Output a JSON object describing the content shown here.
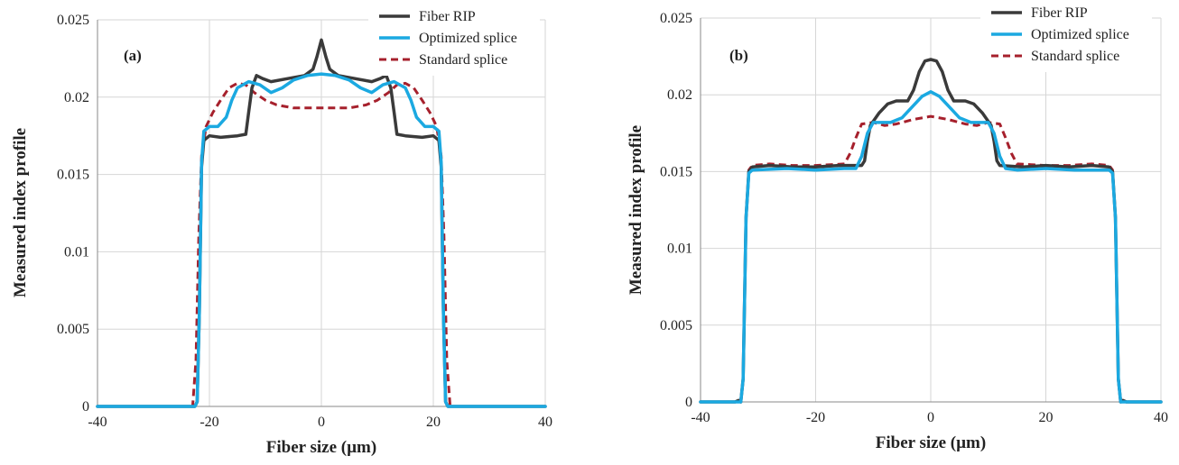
{
  "chart_data": [
    {
      "type": "line",
      "panel_label": "(a)",
      "xlabel": "Fiber size (µm)",
      "ylabel": "Measured index profile",
      "xlim": [
        -40,
        40
      ],
      "ylim": [
        0,
        0.025
      ],
      "xticks": [
        -40,
        -20,
        0,
        20,
        40
      ],
      "xtick_labels": [
        "-40",
        "-20",
        "0",
        "20",
        "40"
      ],
      "yticks": [
        0,
        0.005,
        0.01,
        0.015,
        0.02,
        0.025
      ],
      "ytick_labels": [
        "0",
        "0.005",
        "0.01",
        "0.015",
        "0.02",
        "0.025"
      ],
      "grid": true,
      "legend_position": "top-right",
      "series": [
        {
          "name": "Fiber RIP",
          "color": "#3a3a3a",
          "dash": "solid",
          "points": [
            [
              -40,
              0
            ],
            [
              -22.6,
              0
            ],
            [
              -22.2,
              0.0003
            ],
            [
              -21.8,
              0.006
            ],
            [
              -21.4,
              0.0155
            ],
            [
              -21,
              0.0172
            ],
            [
              -20,
              0.0175
            ],
            [
              -18,
              0.0174
            ],
            [
              -15,
              0.0175
            ],
            [
              -13.5,
              0.0176
            ],
            [
              -13,
              0.019
            ],
            [
              -12.4,
              0.0206
            ],
            [
              -11.6,
              0.0214
            ],
            [
              -10.5,
              0.0212
            ],
            [
              -9,
              0.021
            ],
            [
              -6,
              0.0212
            ],
            [
              -3,
              0.0214
            ],
            [
              -1.5,
              0.0218
            ],
            [
              -0.8,
              0.0226
            ],
            [
              0,
              0.0237
            ],
            [
              0.8,
              0.0226
            ],
            [
              1.5,
              0.0218
            ],
            [
              3,
              0.0214
            ],
            [
              6,
              0.0212
            ],
            [
              9,
              0.021
            ],
            [
              10.5,
              0.0212
            ],
            [
              11.6,
              0.0214
            ],
            [
              12.4,
              0.0206
            ],
            [
              13,
              0.019
            ],
            [
              13.5,
              0.0176
            ],
            [
              15,
              0.0175
            ],
            [
              18,
              0.0174
            ],
            [
              20,
              0.0175
            ],
            [
              21,
              0.0172
            ],
            [
              21.4,
              0.0155
            ],
            [
              21.8,
              0.006
            ],
            [
              22.2,
              0.0003
            ],
            [
              22.6,
              0
            ],
            [
              40,
              0
            ]
          ]
        },
        {
          "name": "Optimized splice",
          "color": "#1ba9e1",
          "dash": "solid",
          "points": [
            [
              -40,
              0
            ],
            [
              -22.6,
              0
            ],
            [
              -22.2,
              0.0003
            ],
            [
              -21.8,
              0.006
            ],
            [
              -21.4,
              0.0158
            ],
            [
              -21,
              0.0178
            ],
            [
              -20,
              0.0181
            ],
            [
              -18.5,
              0.0181
            ],
            [
              -17,
              0.0187
            ],
            [
              -16,
              0.0198
            ],
            [
              -15,
              0.0206
            ],
            [
              -13,
              0.021
            ],
            [
              -11,
              0.0208
            ],
            [
              -9,
              0.0203
            ],
            [
              -7,
              0.0206
            ],
            [
              -5,
              0.0211
            ],
            [
              -2.5,
              0.0214
            ],
            [
              0,
              0.0215
            ],
            [
              2.5,
              0.0214
            ],
            [
              5,
              0.0211
            ],
            [
              7,
              0.0206
            ],
            [
              9,
              0.0203
            ],
            [
              11,
              0.0208
            ],
            [
              13,
              0.021
            ],
            [
              15,
              0.0206
            ],
            [
              16,
              0.0198
            ],
            [
              17,
              0.0187
            ],
            [
              18.5,
              0.0181
            ],
            [
              20,
              0.0181
            ],
            [
              21,
              0.0178
            ],
            [
              21.4,
              0.0158
            ],
            [
              21.8,
              0.006
            ],
            [
              22.2,
              0.0003
            ],
            [
              22.6,
              0
            ],
            [
              40,
              0
            ]
          ]
        },
        {
          "name": "Standard splice",
          "color": "#a6202c",
          "dash": "dashed",
          "points": [
            [
              -40,
              0
            ],
            [
              -23,
              0
            ],
            [
              -22.4,
              0.003
            ],
            [
              -21.9,
              0.011
            ],
            [
              -21.4,
              0.0162
            ],
            [
              -20.6,
              0.0181
            ],
            [
              -19.4,
              0.019
            ],
            [
              -18,
              0.0198
            ],
            [
              -16.5,
              0.0206
            ],
            [
              -15,
              0.0209
            ],
            [
              -13.5,
              0.0208
            ],
            [
              -12,
              0.0203
            ],
            [
              -10,
              0.0198
            ],
            [
              -8,
              0.0195
            ],
            [
              -5,
              0.0193
            ],
            [
              0,
              0.0193
            ],
            [
              5,
              0.0193
            ],
            [
              8,
              0.0195
            ],
            [
              10,
              0.0198
            ],
            [
              12,
              0.0203
            ],
            [
              13.5,
              0.0208
            ],
            [
              15,
              0.0209
            ],
            [
              16.5,
              0.0206
            ],
            [
              18,
              0.0198
            ],
            [
              19.4,
              0.019
            ],
            [
              20.6,
              0.0181
            ],
            [
              21.4,
              0.0162
            ],
            [
              21.9,
              0.011
            ],
            [
              22.4,
              0.003
            ],
            [
              23,
              0
            ],
            [
              40,
              0
            ]
          ]
        }
      ]
    },
    {
      "type": "line",
      "panel_label": "(b)",
      "xlabel": "Fiber size (µm)",
      "ylabel": "Measured index profile",
      "xlim": [
        -40,
        40
      ],
      "ylim": [
        0,
        0.025
      ],
      "xticks": [
        -40,
        -20,
        0,
        20,
        40
      ],
      "xtick_labels": [
        "-40",
        "-20",
        "0",
        "20",
        "40"
      ],
      "yticks": [
        0,
        0.005,
        0.01,
        0.015,
        0.02,
        0.025
      ],
      "ytick_labels": [
        "0",
        "0.005",
        "0.01",
        "0.015",
        "0.02",
        "0.025"
      ],
      "grid": true,
      "legend_position": "top-right",
      "series": [
        {
          "name": "Fiber RIP",
          "color": "#3a3a3a",
          "dash": "solid",
          "points": [
            [
              -40,
              0
            ],
            [
              -34,
              0
            ],
            [
              -33.4,
              0.0001
            ],
            [
              -33,
              0
            ],
            [
              -32.6,
              0.0015
            ],
            [
              -32.1,
              0.012
            ],
            [
              -31.6,
              0.015
            ],
            [
              -31,
              0.0153
            ],
            [
              -28,
              0.0154
            ],
            [
              -24,
              0.0153
            ],
            [
              -20,
              0.0153
            ],
            [
              -16,
              0.0154
            ],
            [
              -12,
              0.0154
            ],
            [
              -11.5,
              0.0157
            ],
            [
              -11,
              0.017
            ],
            [
              -10.5,
              0.018
            ],
            [
              -9,
              0.0188
            ],
            [
              -7.5,
              0.0194
            ],
            [
              -6,
              0.0196
            ],
            [
              -4,
              0.0196
            ],
            [
              -3,
              0.0203
            ],
            [
              -2,
              0.0215
            ],
            [
              -1,
              0.0222
            ],
            [
              0,
              0.0223
            ],
            [
              1,
              0.0222
            ],
            [
              2,
              0.0215
            ],
            [
              3,
              0.0203
            ],
            [
              4,
              0.0196
            ],
            [
              6,
              0.0196
            ],
            [
              7.5,
              0.0194
            ],
            [
              9,
              0.0188
            ],
            [
              10.5,
              0.018
            ],
            [
              11,
              0.017
            ],
            [
              11.5,
              0.0157
            ],
            [
              12,
              0.0154
            ],
            [
              16,
              0.0153
            ],
            [
              20,
              0.0154
            ],
            [
              24,
              0.0153
            ],
            [
              28,
              0.0154
            ],
            [
              31,
              0.0153
            ],
            [
              31.6,
              0.015
            ],
            [
              32.1,
              0.012
            ],
            [
              32.6,
              0.0015
            ],
            [
              33,
              0
            ],
            [
              33.4,
              0.0001
            ],
            [
              34,
              0
            ],
            [
              40,
              0
            ]
          ]
        },
        {
          "name": "Optimized splice",
          "color": "#1ba9e1",
          "dash": "solid",
          "points": [
            [
              -40,
              0
            ],
            [
              -34,
              0
            ],
            [
              -33,
              0
            ],
            [
              -32.6,
              0.0015
            ],
            [
              -32.1,
              0.012
            ],
            [
              -31.6,
              0.0149
            ],
            [
              -31,
              0.0151
            ],
            [
              -25,
              0.0152
            ],
            [
              -20,
              0.0151
            ],
            [
              -15,
              0.0152
            ],
            [
              -13,
              0.0152
            ],
            [
              -12,
              0.016
            ],
            [
              -11,
              0.0175
            ],
            [
              -10,
              0.0182
            ],
            [
              -7,
              0.0182
            ],
            [
              -5,
              0.0185
            ],
            [
              -3,
              0.0193
            ],
            [
              -1.5,
              0.0199
            ],
            [
              0,
              0.0202
            ],
            [
              1.5,
              0.0199
            ],
            [
              3,
              0.0193
            ],
            [
              5,
              0.0185
            ],
            [
              7,
              0.0182
            ],
            [
              10,
              0.0182
            ],
            [
              11,
              0.0175
            ],
            [
              12,
              0.016
            ],
            [
              13,
              0.0152
            ],
            [
              15,
              0.0151
            ],
            [
              20,
              0.0152
            ],
            [
              25,
              0.0151
            ],
            [
              31,
              0.0151
            ],
            [
              31.6,
              0.0149
            ],
            [
              32.1,
              0.012
            ],
            [
              32.6,
              0.0015
            ],
            [
              33,
              0
            ],
            [
              34,
              0
            ],
            [
              40,
              0
            ]
          ]
        },
        {
          "name": "Standard splice",
          "color": "#a6202c",
          "dash": "dashed",
          "points": [
            [
              -40,
              0
            ],
            [
              -34,
              0
            ],
            [
              -33,
              0
            ],
            [
              -32.6,
              0.0015
            ],
            [
              -32.1,
              0.012
            ],
            [
              -31.6,
              0.0151
            ],
            [
              -31,
              0.0154
            ],
            [
              -28,
              0.0155
            ],
            [
              -24,
              0.0154
            ],
            [
              -20,
              0.0154
            ],
            [
              -15,
              0.0155
            ],
            [
              -14,
              0.0162
            ],
            [
              -13,
              0.0172
            ],
            [
              -12,
              0.0181
            ],
            [
              -10,
              0.0182
            ],
            [
              -8,
              0.018
            ],
            [
              -6,
              0.0181
            ],
            [
              -3,
              0.0184
            ],
            [
              0,
              0.0186
            ],
            [
              3,
              0.0184
            ],
            [
              6,
              0.0181
            ],
            [
              8,
              0.018
            ],
            [
              10,
              0.0182
            ],
            [
              12,
              0.0181
            ],
            [
              13,
              0.0172
            ],
            [
              14,
              0.0162
            ],
            [
              15,
              0.0155
            ],
            [
              20,
              0.0154
            ],
            [
              24,
              0.0154
            ],
            [
              28,
              0.0155
            ],
            [
              31,
              0.0154
            ],
            [
              31.6,
              0.0151
            ],
            [
              32.1,
              0.012
            ],
            [
              32.6,
              0.0015
            ],
            [
              33,
              0
            ],
            [
              34,
              0
            ],
            [
              40,
              0
            ]
          ]
        }
      ]
    }
  ]
}
